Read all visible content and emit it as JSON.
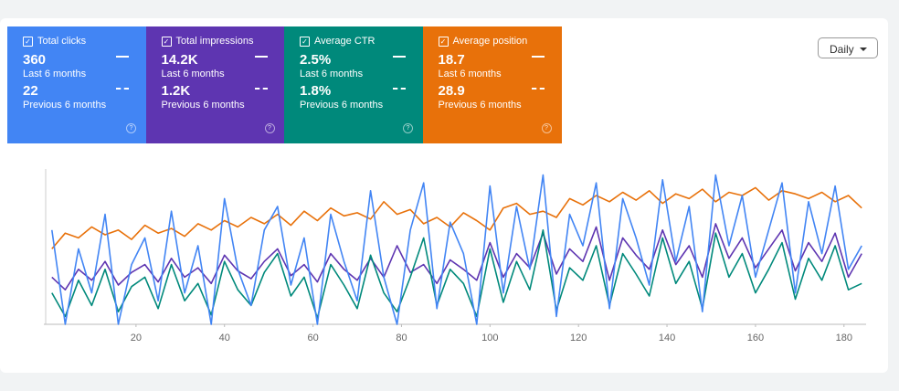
{
  "metrics": [
    {
      "label": "Total clicks",
      "current": "360",
      "current_period": "Last 6 months",
      "previous": "22",
      "previous_period": "Previous 6 months",
      "color": "#4285f4"
    },
    {
      "label": "Total impressions",
      "current": "14.2K",
      "current_period": "Last 6 months",
      "previous": "1.2K",
      "previous_period": "Previous 6 months",
      "color": "#5e35b1"
    },
    {
      "label": "Average CTR",
      "current": "2.5%",
      "current_period": "Last 6 months",
      "previous": "1.8%",
      "previous_period": "Previous 6 months",
      "color": "#00897b"
    },
    {
      "label": "Average position",
      "current": "18.7",
      "current_period": "Last 6 months",
      "previous": "28.9",
      "previous_period": "Previous 6 months",
      "color": "#e8710a"
    }
  ],
  "granularity": "Daily",
  "chart_data": {
    "type": "line",
    "x": [
      1,
      4,
      7,
      10,
      13,
      16,
      19,
      22,
      25,
      28,
      31,
      34,
      37,
      40,
      43,
      46,
      49,
      52,
      55,
      58,
      61,
      64,
      67,
      70,
      73,
      76,
      79,
      82,
      85,
      88,
      91,
      94,
      97,
      100,
      103,
      106,
      109,
      112,
      115,
      118,
      121,
      124,
      127,
      130,
      133,
      136,
      139,
      142,
      145,
      148,
      151,
      154,
      157,
      160,
      163,
      166,
      169,
      172,
      175,
      178,
      181,
      184
    ],
    "xlim": [
      0,
      185
    ],
    "xticks": [
      20,
      40,
      60,
      80,
      100,
      120,
      140,
      160,
      180
    ],
    "ylim": [
      0,
      100
    ],
    "series": [
      {
        "color": "#e8710a",
        "values": [
          48,
          58,
          55,
          62,
          57,
          60,
          54,
          63,
          58,
          61,
          56,
          64,
          60,
          66,
          62,
          68,
          64,
          70,
          63,
          72,
          66,
          74,
          69,
          71,
          67,
          78,
          70,
          73,
          64,
          68,
          62,
          71,
          66,
          60,
          74,
          77,
          70,
          72,
          68,
          80,
          76,
          82,
          78,
          84,
          79,
          85,
          77,
          83,
          80,
          86,
          78,
          84,
          82,
          87,
          79,
          85,
          83,
          80,
          84,
          78,
          82,
          74
        ]
      },
      {
        "color": "#5e35b1",
        "values": [
          30,
          22,
          35,
          28,
          40,
          25,
          33,
          38,
          27,
          42,
          30,
          36,
          26,
          44,
          34,
          29,
          40,
          48,
          31,
          38,
          27,
          45,
          35,
          28,
          42,
          30,
          50,
          33,
          38,
          26,
          41,
          35,
          28,
          52,
          30,
          45,
          36,
          58,
          32,
          48,
          40,
          62,
          28,
          55,
          44,
          35,
          60,
          38,
          50,
          30,
          64,
          42,
          55,
          36,
          48,
          60,
          34,
          52,
          40,
          58,
          30,
          45
        ]
      },
      {
        "color": "#00897b",
        "values": [
          20,
          5,
          28,
          12,
          35,
          8,
          24,
          30,
          10,
          38,
          15,
          26,
          6,
          40,
          22,
          12,
          33,
          45,
          18,
          30,
          4,
          38,
          25,
          10,
          44,
          20,
          8,
          30,
          55,
          12,
          35,
          26,
          5,
          48,
          14,
          40,
          22,
          60,
          9,
          36,
          28,
          50,
          12,
          45,
          32,
          18,
          55,
          26,
          40,
          10,
          58,
          30,
          45,
          20,
          35,
          52,
          16,
          42,
          28,
          50,
          22,
          26
        ]
      },
      {
        "color": "#4285f4",
        "values": [
          60,
          0,
          48,
          20,
          70,
          0,
          38,
          55,
          15,
          72,
          20,
          50,
          0,
          80,
          35,
          12,
          60,
          75,
          25,
          55,
          0,
          70,
          40,
          15,
          85,
          30,
          0,
          60,
          90,
          10,
          65,
          45,
          0,
          88,
          20,
          75,
          35,
          95,
          5,
          70,
          50,
          90,
          10,
          80,
          55,
          25,
          92,
          40,
          75,
          8,
          95,
          50,
          82,
          30,
          60,
          90,
          20,
          78,
          45,
          88,
          35,
          50
        ]
      }
    ]
  }
}
